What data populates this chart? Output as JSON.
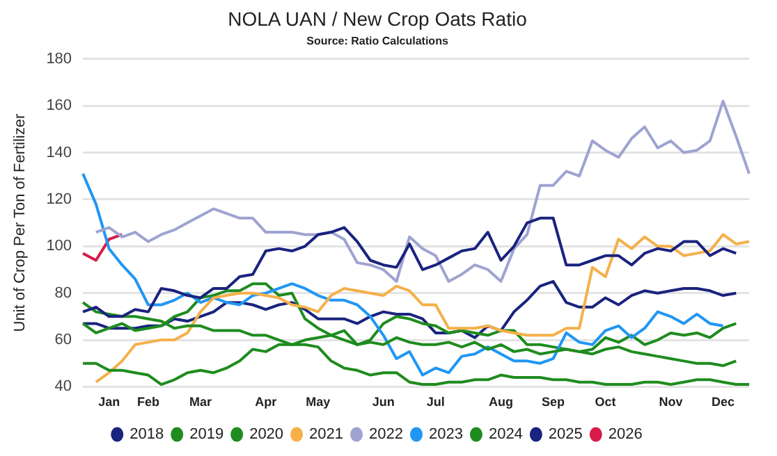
{
  "chart_data": {
    "type": "line",
    "title": "NOLA UAN / New Crop Oats Ratio",
    "subtitle": "Source: Ratio Calculations",
    "ylabel": "Unit of Crop Per Ton of Fertilizer",
    "categories": [
      null,
      null,
      "Jan",
      null,
      null,
      "Feb",
      null,
      null,
      null,
      "Mar",
      null,
      null,
      null,
      null,
      "Apr",
      null,
      null,
      null,
      "May",
      null,
      null,
      null,
      null,
      "Jun",
      null,
      null,
      null,
      "Jul",
      null,
      null,
      null,
      null,
      "Aug",
      null,
      null,
      null,
      "Sep",
      null,
      null,
      null,
      "Oct",
      null,
      null,
      null,
      null,
      "Nov",
      null,
      null,
      null,
      "Dec",
      null,
      null
    ],
    "ylim": [
      40,
      180
    ],
    "yticks": [
      40,
      60,
      80,
      100,
      120,
      140,
      160,
      180
    ],
    "grid": "y",
    "legend": "bottom",
    "series": [
      {
        "name": "2018",
        "color": "#1a237e",
        "values": [
          72,
          74,
          70,
          70,
          73,
          72,
          82,
          81,
          79,
          78,
          82,
          82,
          87,
          88,
          98,
          99,
          98,
          100,
          105,
          106,
          108,
          102,
          94,
          92,
          91,
          101,
          90,
          92,
          95,
          98,
          99,
          106,
          94,
          100,
          110,
          112,
          112,
          92,
          92,
          94,
          96,
          96,
          92,
          97,
          99,
          98,
          102,
          102,
          96,
          99,
          97,
          null
        ]
      },
      {
        "name": "2019",
        "color": "#1e8c1e",
        "values": [
          76,
          72,
          71,
          70,
          70,
          69,
          68,
          65,
          66,
          66,
          64,
          64,
          64,
          62,
          62,
          60,
          58,
          58,
          57,
          51,
          48,
          47,
          45,
          46,
          46,
          42,
          41,
          41,
          42,
          42,
          43,
          43,
          45,
          44,
          44,
          44,
          43,
          43,
          42,
          42,
          41,
          41,
          41,
          42,
          42,
          41,
          42,
          43,
          43,
          42,
          41,
          41
        ]
      },
      {
        "name": "2020",
        "color": "#1e8c1e",
        "values": [
          50,
          50,
          47,
          47,
          46,
          45,
          41,
          43,
          46,
          47,
          46,
          48,
          51,
          56,
          55,
          58,
          58,
          60,
          61,
          62,
          60,
          58,
          59,
          58,
          61,
          59,
          58,
          58,
          59,
          57,
          59,
          56,
          58,
          55,
          56,
          54,
          55,
          56,
          55,
          54,
          56,
          57,
          55,
          54,
          53,
          52,
          51,
          50,
          50,
          49,
          51,
          null
        ]
      },
      {
        "name": "2021",
        "color": "#f5b04a",
        "values": [
          null,
          42,
          46,
          51,
          58,
          59,
          60,
          60,
          63,
          72,
          78,
          79,
          80,
          80,
          79,
          78,
          75,
          74,
          72,
          79,
          82,
          81,
          80,
          79,
          83,
          81,
          75,
          75,
          65,
          65,
          65,
          66,
          64,
          63,
          62,
          62,
          62,
          65,
          65,
          91,
          87,
          103,
          99,
          104,
          100,
          100,
          96,
          97,
          98,
          105,
          101,
          102
        ]
      },
      {
        "name": "2022",
        "color": "#9fa3d1",
        "values": [
          null,
          106,
          108,
          104,
          106,
          102,
          105,
          107,
          110,
          113,
          116,
          114,
          112,
          112,
          106,
          106,
          106,
          105,
          105,
          106,
          103,
          93,
          92,
          90,
          85,
          104,
          99,
          96,
          85,
          88,
          92,
          90,
          85,
          99,
          105,
          126,
          126,
          132,
          130,
          145,
          141,
          138,
          146,
          151,
          142,
          145,
          140,
          141,
          145,
          162,
          147,
          131
        ]
      },
      {
        "name": "2023",
        "color": "#2196f3",
        "values": [
          131,
          118,
          99,
          92,
          86,
          75,
          75,
          77,
          80,
          76,
          78,
          76,
          75,
          79,
          80,
          82,
          84,
          82,
          79,
          77,
          77,
          75,
          70,
          62,
          52,
          55,
          45,
          48,
          46,
          53,
          54,
          57,
          54,
          51,
          51,
          50,
          52,
          63,
          59,
          58,
          64,
          66,
          61,
          65,
          72,
          70,
          67,
          71,
          67,
          66,
          null,
          null
        ]
      },
      {
        "name": "2024",
        "color": "#1e8c1e",
        "values": [
          67,
          63,
          65,
          67,
          64,
          65,
          66,
          70,
          72,
          78,
          79,
          81,
          81,
          84,
          84,
          79,
          80,
          69,
          65,
          62,
          64,
          58,
          60,
          67,
          70,
          69,
          67,
          66,
          63,
          64,
          63,
          62,
          64,
          64,
          58,
          58,
          57,
          56,
          55,
          56,
          61,
          59,
          62,
          58,
          60,
          63,
          62,
          63,
          61,
          65,
          67,
          null
        ]
      },
      {
        "name": "2025",
        "color": "#1a237e",
        "values": [
          67,
          67,
          65,
          65,
          65,
          66,
          66,
          69,
          68,
          70,
          72,
          76,
          76,
          75,
          73,
          75,
          76,
          73,
          69,
          69,
          69,
          67,
          70,
          72,
          71,
          71,
          69,
          63,
          63,
          64,
          61,
          66,
          64,
          72,
          77,
          83,
          85,
          76,
          74,
          74,
          78,
          75,
          79,
          81,
          80,
          81,
          82,
          82,
          81,
          79,
          80,
          null
        ]
      },
      {
        "name": "2026",
        "color": "#d81b48",
        "values": [
          97,
          94,
          103,
          105,
          null,
          null,
          null,
          null,
          null,
          null,
          null,
          null,
          null,
          null,
          null,
          null,
          null,
          null,
          null,
          null,
          null,
          null,
          null,
          null,
          null,
          null,
          null,
          null,
          null,
          null,
          null,
          null,
          null,
          null,
          null,
          null,
          null,
          null,
          null,
          null,
          null,
          null,
          null,
          null,
          null,
          null,
          null,
          null,
          null,
          null,
          null,
          null
        ]
      }
    ]
  }
}
